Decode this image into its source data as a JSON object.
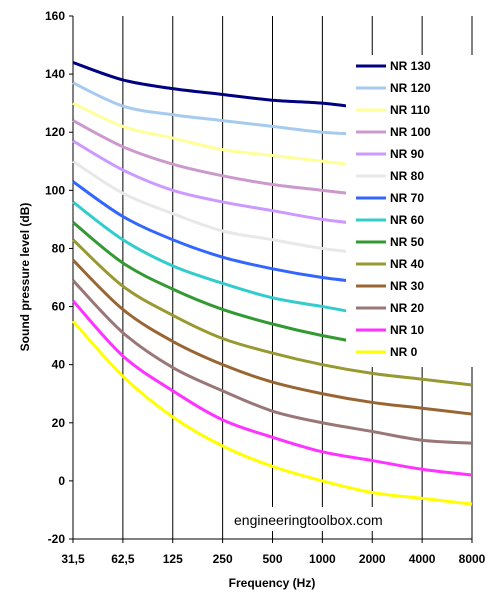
{
  "chart_data": {
    "type": "line",
    "title": "",
    "xlabel": "Frequency (Hz)",
    "ylabel": "Sound pressure level (dB)",
    "ylim": [
      -20,
      160
    ],
    "y_ticks": [
      -20,
      0,
      20,
      40,
      60,
      80,
      100,
      120,
      140,
      160
    ],
    "categories": [
      "31,5",
      "62,5",
      "125",
      "250",
      "500",
      "1000",
      "2000",
      "4000",
      "8000"
    ],
    "grid": "vertical",
    "legend_position": "top-right",
    "watermark": "engineeringtoolbox.com",
    "series": [
      {
        "name": "NR 130",
        "color": "#000080",
        "values": [
          144,
          138,
          135,
          133,
          131,
          130,
          128,
          127,
          126
        ]
      },
      {
        "name": "NR 120",
        "color": "#a6cbef",
        "values": [
          137,
          129,
          126,
          124,
          122,
          120,
          119,
          117,
          116
        ]
      },
      {
        "name": "NR 110",
        "color": "#ffff99",
        "values": [
          130,
          122,
          118,
          114,
          112,
          110,
          108,
          106,
          105
        ]
      },
      {
        "name": "NR 100",
        "color": "#cc99cc",
        "values": [
          124,
          115,
          109,
          105,
          102,
          100,
          98,
          96,
          95
        ]
      },
      {
        "name": "NR 90",
        "color": "#cc99ff",
        "values": [
          117,
          107,
          100,
          96,
          93,
          90,
          88,
          86,
          85
        ]
      },
      {
        "name": "NR 80",
        "color": "#e8e8e8",
        "values": [
          110,
          99,
          92,
          86,
          83,
          80,
          78,
          76,
          74
        ]
      },
      {
        "name": "NR 70",
        "color": "#3366ff",
        "values": [
          103,
          91,
          83,
          77,
          73,
          70,
          68,
          66,
          64
        ]
      },
      {
        "name": "NR 60",
        "color": "#33cccc",
        "values": [
          96,
          83,
          74,
          68,
          63,
          60,
          57,
          55,
          54
        ]
      },
      {
        "name": "NR 50",
        "color": "#339933",
        "values": [
          89,
          75,
          66,
          59,
          54,
          50,
          47,
          45,
          44
        ]
      },
      {
        "name": "NR 40",
        "color": "#999933",
        "values": [
          83,
          67,
          57,
          49,
          44,
          40,
          37,
          35,
          33
        ]
      },
      {
        "name": "NR 30",
        "color": "#996633",
        "values": [
          76,
          59,
          48,
          40,
          34,
          30,
          27,
          25,
          23
        ]
      },
      {
        "name": "NR 20",
        "color": "#997777",
        "values": [
          69,
          51,
          39,
          31,
          24,
          20,
          17,
          14,
          13
        ]
      },
      {
        "name": "NR 10",
        "color": "#ff33ff",
        "values": [
          62,
          43,
          31,
          21,
          15,
          10,
          7,
          4,
          2
        ]
      },
      {
        "name": "NR 0",
        "color": "#ffff00",
        "values": [
          55,
          36,
          22,
          12,
          5,
          0,
          -4,
          -6,
          -8
        ]
      }
    ]
  }
}
